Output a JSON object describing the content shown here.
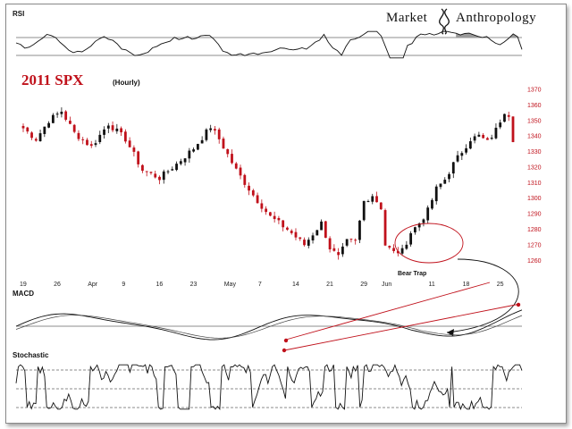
{
  "header": {
    "brand_left": "Market",
    "brand_right": "Anthropology"
  },
  "colors": {
    "accent": "#c0111b",
    "up": "#111111",
    "down": "#c0111b",
    "grid": "#888888"
  },
  "chart_data": {
    "type": "candlestick",
    "title": "2011 SPX",
    "subtitle": "(Hourly)",
    "ylim": [
      1255,
      1370
    ],
    "y_ticks": [
      1370,
      1360,
      1350,
      1340,
      1330,
      1320,
      1310,
      1300,
      1290,
      1280,
      1270,
      1260
    ],
    "x_ticks": [
      "19",
      "26",
      "Apr",
      "9",
      "16",
      "23",
      "May",
      "7",
      "14",
      "21",
      "29",
      "Jun",
      "11",
      "18",
      "25"
    ],
    "x_tick_index": [
      0,
      8,
      16,
      24,
      32,
      40,
      48,
      56,
      64,
      72,
      80,
      85,
      96,
      104,
      112
    ],
    "price_anchors": [
      [
        0,
        1345
      ],
      [
        3,
        1338
      ],
      [
        6,
        1350
      ],
      [
        9,
        1356
      ],
      [
        12,
        1342
      ],
      [
        16,
        1333
      ],
      [
        20,
        1348
      ],
      [
        24,
        1338
      ],
      [
        28,
        1318
      ],
      [
        32,
        1313
      ],
      [
        36,
        1322
      ],
      [
        40,
        1332
      ],
      [
        44,
        1346
      ],
      [
        46,
        1338
      ],
      [
        50,
        1318
      ],
      [
        54,
        1302
      ],
      [
        58,
        1288
      ],
      [
        62,
        1280
      ],
      [
        66,
        1270
      ],
      [
        70,
        1284
      ],
      [
        72,
        1268
      ],
      [
        74,
        1262
      ],
      [
        76,
        1272
      ],
      [
        78,
        1272
      ],
      [
        80,
        1298
      ],
      [
        82,
        1302
      ],
      [
        84,
        1294
      ],
      [
        85,
        1270
      ],
      [
        87,
        1265
      ],
      [
        89,
        1266
      ],
      [
        91,
        1278
      ],
      [
        93,
        1284
      ],
      [
        95,
        1292
      ],
      [
        97,
        1306
      ],
      [
        99,
        1312
      ],
      [
        101,
        1322
      ],
      [
        103,
        1330
      ],
      [
        105,
        1338
      ],
      [
        107,
        1340
      ],
      [
        109,
        1336
      ],
      [
        111,
        1344
      ],
      [
        113,
        1356
      ],
      [
        114,
        1354
      ],
      [
        115,
        1338
      ]
    ],
    "annotations": [
      {
        "text": "Bear Trap",
        "at_index": 88,
        "at_price": 1262
      }
    ],
    "panels": [
      {
        "name": "RSI",
        "levels": [
          70,
          30
        ],
        "range": [
          0,
          100
        ]
      },
      {
        "name": "MACD",
        "trendlines": 2
      },
      {
        "name": "Stochastic",
        "levels": [
          80,
          50,
          20
        ],
        "range": [
          0,
          100
        ]
      }
    ]
  }
}
